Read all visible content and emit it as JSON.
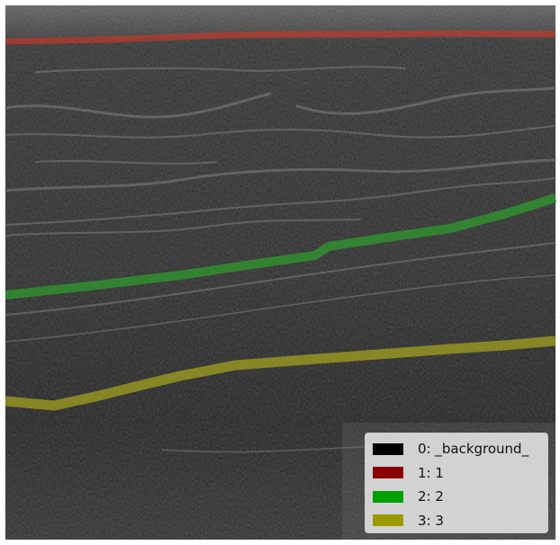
{
  "image": {
    "description_free": true,
    "background_color": "#2a2a2a"
  },
  "overlays": [
    {
      "class_id": 1,
      "color": "#c0392b"
    },
    {
      "class_id": 2,
      "color": "#2ea02e"
    },
    {
      "class_id": 3,
      "color": "#a8a81e"
    }
  ],
  "legend": {
    "items": [
      {
        "label": "0: _background_",
        "color": "#000000"
      },
      {
        "label": "1: 1",
        "color": "#8b0000"
      },
      {
        "label": "2: 2",
        "color": "#00a000"
      },
      {
        "label": "3: 3",
        "color": "#9a9a00"
      }
    ]
  }
}
